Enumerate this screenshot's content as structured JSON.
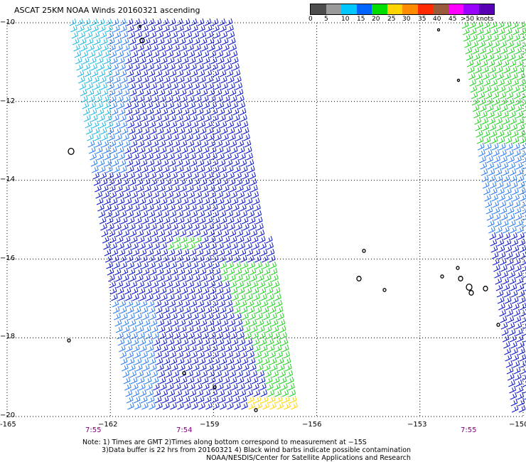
{
  "title": "ASCAT 25KM NOAA Winds 20160321 ascending",
  "legend": {
    "ticks": [
      "0",
      "5",
      "10",
      "15",
      "20",
      "25",
      "30",
      "35",
      "40",
      "45",
      ">50 knots"
    ],
    "colors": [
      "#4d4d4d",
      "#9a9a9a",
      "#00c8ff",
      "#0064ff",
      "#00dd00",
      "#ffd400",
      "#ff8c00",
      "#ff2a00",
      "#9b5a3c",
      "#ff00ff",
      "#9b00ff",
      "#5a00b4"
    ]
  },
  "lat_labels": [
    "-10",
    "-12",
    "-14",
    "-16",
    "-18",
    "-20"
  ],
  "lon_labels": [
    "-165",
    "-162",
    "-159",
    "-156",
    "-153",
    "-150"
  ],
  "lon_label_texts": [
    "-165",
    "−162",
    "−159",
    "−156",
    "−153",
    "−150"
  ],
  "lat_label_texts": [
    "−10",
    "−12",
    "−14",
    "−16",
    "−18",
    "−20"
  ],
  "time_labels": [
    "7:55",
    "7:54",
    "7:55"
  ],
  "notes": {
    "line1": "Note: 1) Times are GMT 2)Times along bottom correspond to measurement at −15S",
    "line2": "3)Data buffer is 22 hrs from 20160321 4) Black wind barbs indicate possible contamination",
    "line3": "NOAA/NESDIS/Center for Satellite Applications and Research"
  },
  "map": {
    "lon_range": [
      -165,
      -150
    ],
    "lat_range": [
      -20,
      -10
    ],
    "grid": "dotted",
    "colors": {
      "low": "#0a14c8",
      "mid": "#2a7cf0",
      "light": "#20b8e0",
      "green": "#22d022",
      "yellow": "#ffd400",
      "black": "#000000"
    }
  }
}
